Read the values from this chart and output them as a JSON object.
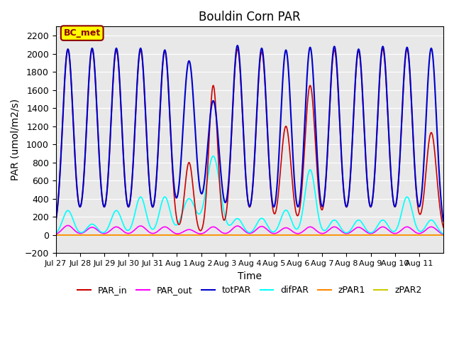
{
  "title": "Bouldin Corn PAR",
  "xlabel": "Time",
  "ylabel": "PAR (umol/m2/s)",
  "ylim": [
    -200,
    2300
  ],
  "yticks": [
    -200,
    0,
    200,
    400,
    600,
    800,
    1000,
    1200,
    1400,
    1600,
    1800,
    2000,
    2200
  ],
  "xtick_labels": [
    "Jul 27",
    "Jul 28",
    "Jul 29",
    "Jul 30",
    "Jul 31",
    "Aug 1",
    "Aug 2",
    "Aug 3",
    "Aug 4",
    "Aug 5",
    "Aug 6",
    "Aug 7",
    "Aug 8",
    "Aug 9",
    "Aug 10",
    "Aug 11"
  ],
  "n_days": 16,
  "pts_per_day": 144,
  "series_colors": {
    "PAR_in": "#cc0000",
    "PAR_out": "#ff00ff",
    "totPAR": "#0000cc",
    "difPAR": "#00ffff",
    "zPAR1": "#ff8800",
    "zPAR2": "#cccc00"
  },
  "series_linewidths": {
    "PAR_in": 1.2,
    "PAR_out": 1.2,
    "totPAR": 1.5,
    "difPAR": 1.2,
    "zPAR1": 1.2,
    "zPAR2": 1.2
  },
  "annotation_text": "BC_met",
  "annotation_bg": "#ffff00",
  "annotation_border": "#8b0000",
  "plot_bg": "#e8e8e8",
  "fig_bg": "#ffffff",
  "peaks_totPAR": [
    2050,
    2060,
    2060,
    2060,
    2040,
    1920,
    1480,
    2090,
    2060,
    2040,
    2070,
    2080,
    2050,
    2080,
    2070,
    2060
  ],
  "peaks_difPAR": [
    270,
    120,
    270,
    420,
    420,
    400,
    870,
    180,
    185,
    275,
    720,
    165,
    165,
    165,
    420,
    165
  ],
  "peaks_PAR_in": [
    2050,
    2050,
    2040,
    2040,
    2030,
    800,
    1650,
    2050,
    2020,
    1200,
    1650,
    2040,
    2030,
    2050,
    2050,
    1130
  ],
  "peaks_PAR_out": [
    105,
    85,
    90,
    100,
    90,
    60,
    90,
    100,
    95,
    80,
    90,
    90,
    85,
    90,
    90,
    90
  ],
  "cloudy_days": [
    5,
    6
  ]
}
